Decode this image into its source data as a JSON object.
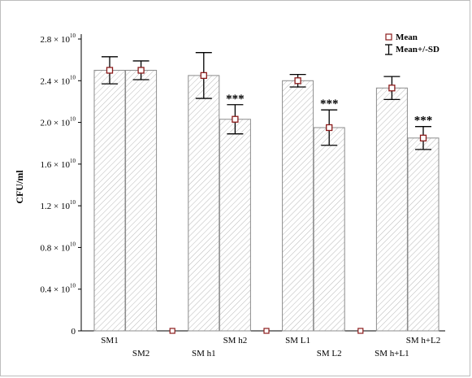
{
  "chart_data": {
    "type": "bar",
    "ylabel": "CFU/ml",
    "ylim": [
      0,
      28000000000.0
    ],
    "y_ticks": [
      {
        "value": 0,
        "label": "0",
        "exp": ""
      },
      {
        "value": 4000000000.0,
        "label": "0.4 × 10",
        "exp": "10"
      },
      {
        "value": 8000000000.0,
        "label": "0.8 × 10",
        "exp": "10"
      },
      {
        "value": 12000000000.0,
        "label": "1.2 × 10",
        "exp": "10"
      },
      {
        "value": 16000000000.0,
        "label": "1.6 × 10",
        "exp": "10"
      },
      {
        "value": 20000000000.0,
        "label": "2.0 × 10",
        "exp": "10"
      },
      {
        "value": 24000000000.0,
        "label": "2.4 × 10",
        "exp": "10"
      },
      {
        "value": 28000000000.0,
        "label": "2.8 × 10",
        "exp": "10"
      }
    ],
    "bars": [
      {
        "label": "SM1",
        "mean": 25000000000.0,
        "sd": 1300000000.0,
        "label_row": 0,
        "stars": ""
      },
      {
        "label": "SM2",
        "mean": 25000000000.0,
        "sd": 900000000.0,
        "label_row": 1,
        "stars": ""
      },
      {
        "label": "",
        "mean": 0,
        "sd": 0,
        "label_row": 0,
        "stars": ""
      },
      {
        "label": "SM h1",
        "mean": 24500000000.0,
        "sd": 2200000000.0,
        "label_row": 1,
        "stars": ""
      },
      {
        "label": "SM h2",
        "mean": 20300000000.0,
        "sd": 1400000000.0,
        "label_row": 0,
        "stars": "***"
      },
      {
        "label": "",
        "mean": 0,
        "sd": 0,
        "label_row": 0,
        "stars": ""
      },
      {
        "label": "SM L1",
        "mean": 24000000000.0,
        "sd": 600000000.0,
        "label_row": 0,
        "stars": ""
      },
      {
        "label": "SM L2",
        "mean": 19500000000.0,
        "sd": 1700000000.0,
        "label_row": 1,
        "stars": "***"
      },
      {
        "label": "",
        "mean": 0,
        "sd": 0,
        "label_row": 0,
        "stars": ""
      },
      {
        "label": "SM h+L1",
        "mean": 23300000000.0,
        "sd": 1100000000.0,
        "label_row": 1,
        "stars": ""
      },
      {
        "label": "SM h+L2",
        "mean": 18500000000.0,
        "sd": 1100000000.0,
        "label_row": 0,
        "stars": "***"
      }
    ],
    "legend": {
      "placement": "top-right",
      "mean_label": "Mean",
      "sd_label": "Mean+/-SD"
    },
    "grid": false
  }
}
